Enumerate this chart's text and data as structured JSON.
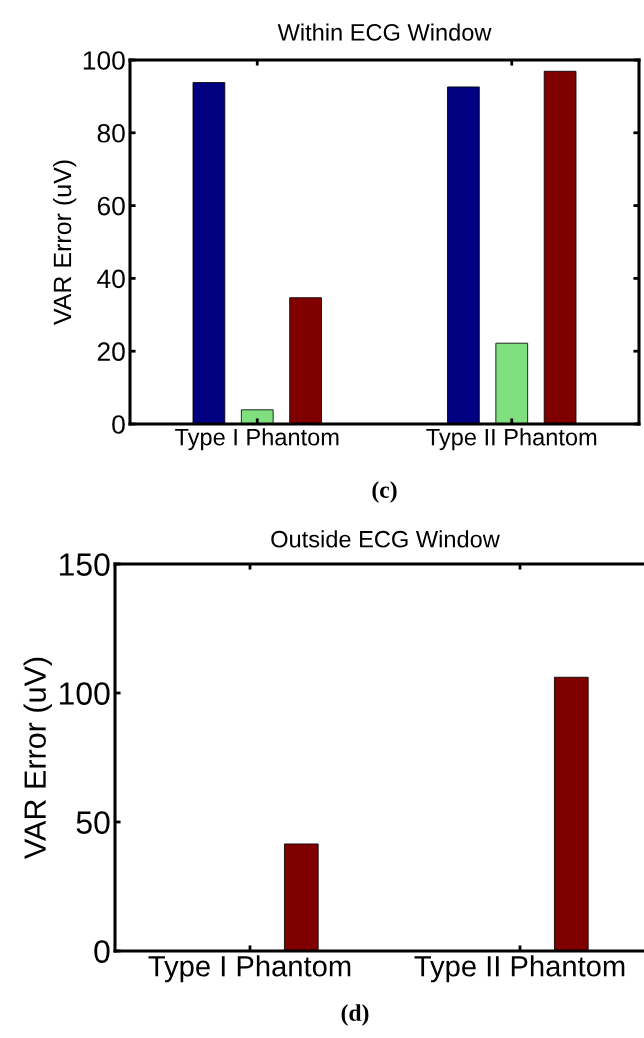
{
  "chart_data": [
    {
      "type": "bar",
      "title": "Within ECG Window",
      "ylabel": "VAR Error (uV)",
      "categories": [
        "Type I Phantom",
        "Type II Phantom"
      ],
      "series": [
        {
          "color": "#000080",
          "values": [
            93.8,
            92.6
          ]
        },
        {
          "color": "#80e080",
          "values": [
            3.9,
            22.2
          ]
        },
        {
          "color": "#800000",
          "values": [
            34.7,
            96.9
          ]
        }
      ],
      "ylim": [
        0,
        100
      ],
      "yticks": [
        0,
        20,
        40,
        60,
        80,
        100
      ],
      "grid": false,
      "legend": false,
      "annotations": [
        "(c)"
      ]
    },
    {
      "type": "bar",
      "title": "Outside ECG Window",
      "ylabel": "VAR Error (uV)",
      "categories": [
        "Type I Phantom",
        "Type II Phantom"
      ],
      "series": [
        {
          "color": "#800000",
          "values": [
            41.5,
            106.1
          ]
        }
      ],
      "ylim": [
        0,
        150
      ],
      "yticks": [
        0,
        50,
        100,
        150
      ],
      "grid": false,
      "legend": false,
      "annotations": [
        "(d)"
      ]
    }
  ]
}
